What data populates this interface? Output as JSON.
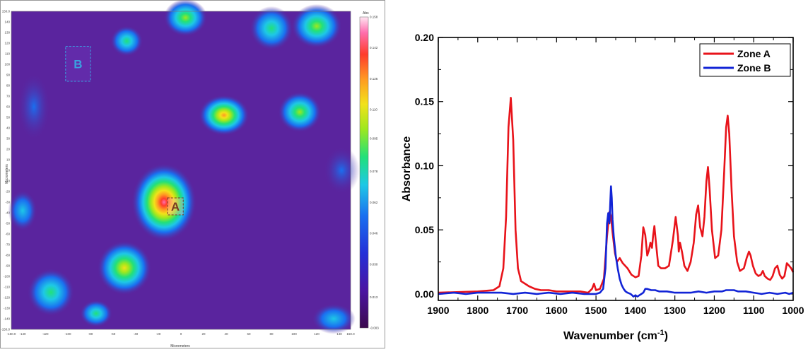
{
  "chart_data": [
    {
      "type": "heatmap",
      "xlabel": "Micrometers",
      "ylabel": "Micrometers",
      "xlim": [
        -150,
        150
      ],
      "ylim": [
        -150,
        150
      ],
      "x_ticks": [
        "-150.0",
        "-140",
        "-120",
        "-100",
        "-80",
        "-60",
        "-40",
        "-20",
        "0",
        "20",
        "40",
        "60",
        "80",
        "100",
        "120",
        "140",
        "150.0"
      ],
      "y_ticks": [
        "150.0",
        "140",
        "130",
        "120",
        "110",
        "100",
        "90",
        "80",
        "70",
        "60",
        "50",
        "40",
        "30",
        "20",
        "10",
        "0",
        "-10",
        "-20",
        "-30",
        "-40",
        "-50",
        "-60",
        "-70",
        "-80",
        "-90",
        "-100",
        "-110",
        "-120",
        "-130",
        "-140",
        "-150.0"
      ],
      "colorbar": {
        "label": "Abs",
        "min": -0.003,
        "max": 0.158,
        "ticks": [
          "0.158",
          "0.142",
          "0.126",
          "0.110",
          "0.095",
          "0.078",
          "0.062",
          "0.046",
          "0.030",
          "0.013",
          "-0.003"
        ]
      },
      "zones": [
        {
          "label": "A",
          "x": [
            -12,
            2
          ],
          "y": [
            -42,
            -26
          ],
          "color": "#7a3a22"
        },
        {
          "label": "B",
          "x": [
            -102,
            -80
          ],
          "y": [
            84,
            117
          ],
          "color": "#3aa0e0"
        }
      ],
      "hotspots": [
        {
          "x": -15,
          "y": -30,
          "rx": 18,
          "ry": 23,
          "level": 0.15
        },
        {
          "x": 38,
          "y": 52,
          "rx": 14,
          "ry": 12,
          "level": 0.13
        },
        {
          "x": 105,
          "y": 55,
          "rx": 12,
          "ry": 12,
          "level": 0.11
        },
        {
          "x": -50,
          "y": -92,
          "rx": 15,
          "ry": 16,
          "level": 0.12
        },
        {
          "x": 4,
          "y": 144,
          "rx": 12,
          "ry": 11,
          "level": 0.11
        },
        {
          "x": -48,
          "y": 122,
          "rx": 9,
          "ry": 9,
          "level": 0.1
        },
        {
          "x": 80,
          "y": 134,
          "rx": 12,
          "ry": 13,
          "level": 0.1
        },
        {
          "x": 120,
          "y": 136,
          "rx": 14,
          "ry": 13,
          "level": 0.11
        },
        {
          "x": -130,
          "y": 60,
          "rx": 9,
          "ry": 20,
          "level": 0.07
        },
        {
          "x": -140,
          "y": -38,
          "rx": 8,
          "ry": 12,
          "level": 0.08
        },
        {
          "x": -115,
          "y": -115,
          "rx": 13,
          "ry": 14,
          "level": 0.09
        },
        {
          "x": -75,
          "y": -135,
          "rx": 9,
          "ry": 8,
          "level": 0.09
        },
        {
          "x": 142,
          "y": 0,
          "rx": 10,
          "ry": 14,
          "level": 0.07
        },
        {
          "x": 135,
          "y": -140,
          "rx": 12,
          "ry": 9,
          "level": 0.08
        }
      ]
    },
    {
      "type": "line",
      "xlabel": "Wavenumber (cm",
      "xlabel_sup": "-1",
      "xlabel_close": ")",
      "ylabel": "Absorbance",
      "xlim": [
        1900,
        1000
      ],
      "ylim": [
        -0.005,
        0.2
      ],
      "x_ticks": [
        1900,
        1800,
        1700,
        1600,
        1500,
        1400,
        1300,
        1200,
        1100,
        1000
      ],
      "y_ticks": [
        "0.00",
        "0.05",
        "0.10",
        "0.15",
        "0.20"
      ],
      "legend_position": "top-right",
      "series": [
        {
          "name": "Zone A",
          "color": "#e8131a",
          "x": [
            1900,
            1800,
            1760,
            1745,
            1735,
            1728,
            1722,
            1716,
            1710,
            1704,
            1698,
            1690,
            1680,
            1670,
            1655,
            1640,
            1620,
            1600,
            1580,
            1560,
            1540,
            1520,
            1510,
            1505,
            1500,
            1490,
            1480,
            1472,
            1466,
            1462,
            1458,
            1452,
            1447,
            1440,
            1432,
            1420,
            1410,
            1400,
            1392,
            1385,
            1380,
            1375,
            1370,
            1366,
            1362,
            1358,
            1355,
            1352,
            1348,
            1342,
            1335,
            1325,
            1315,
            1305,
            1298,
            1292,
            1290,
            1287,
            1282,
            1276,
            1268,
            1260,
            1252,
            1246,
            1241,
            1236,
            1230,
            1225,
            1220,
            1216,
            1212,
            1206,
            1198,
            1190,
            1182,
            1175,
            1170,
            1166,
            1162,
            1156,
            1150,
            1142,
            1135,
            1125,
            1118,
            1112,
            1108,
            1102,
            1095,
            1088,
            1082,
            1077,
            1072,
            1065,
            1058,
            1052,
            1046,
            1040,
            1034,
            1028,
            1022,
            1016,
            1010,
            1005,
            1000
          ],
          "y": [
            0.001,
            0.002,
            0.003,
            0.006,
            0.02,
            0.06,
            0.13,
            0.153,
            0.12,
            0.05,
            0.02,
            0.01,
            0.008,
            0.006,
            0.004,
            0.003,
            0.003,
            0.002,
            0.002,
            0.002,
            0.002,
            0.001,
            0.004,
            0.008,
            0.003,
            0.004,
            0.012,
            0.045,
            0.064,
            0.06,
            0.048,
            0.032,
            0.025,
            0.028,
            0.024,
            0.02,
            0.015,
            0.013,
            0.014,
            0.03,
            0.052,
            0.046,
            0.03,
            0.034,
            0.04,
            0.036,
            0.046,
            0.053,
            0.04,
            0.022,
            0.02,
            0.02,
            0.022,
            0.042,
            0.06,
            0.045,
            0.033,
            0.04,
            0.033,
            0.022,
            0.018,
            0.025,
            0.04,
            0.062,
            0.069,
            0.052,
            0.045,
            0.06,
            0.088,
            0.099,
            0.082,
            0.05,
            0.028,
            0.03,
            0.05,
            0.095,
            0.13,
            0.139,
            0.125,
            0.08,
            0.045,
            0.025,
            0.018,
            0.02,
            0.028,
            0.033,
            0.03,
            0.022,
            0.016,
            0.014,
            0.015,
            0.018,
            0.014,
            0.012,
            0.011,
            0.014,
            0.02,
            0.022,
            0.015,
            0.012,
            0.014,
            0.024,
            0.022,
            0.02,
            0.017
          ]
        },
        {
          "name": "Zone B",
          "color": "#1224d6",
          "x": [
            1900,
            1860,
            1830,
            1800,
            1770,
            1740,
            1710,
            1680,
            1650,
            1620,
            1590,
            1560,
            1530,
            1500,
            1490,
            1482,
            1476,
            1472,
            1469,
            1466,
            1464,
            1462,
            1460,
            1458,
            1455,
            1450,
            1445,
            1440,
            1435,
            1430,
            1425,
            1420,
            1412,
            1405,
            1400,
            1395,
            1390,
            1385,
            1380,
            1375,
            1370,
            1360,
            1350,
            1340,
            1320,
            1300,
            1280,
            1260,
            1240,
            1220,
            1200,
            1180,
            1170,
            1160,
            1150,
            1140,
            1120,
            1100,
            1080,
            1060,
            1040,
            1020,
            1010,
            1000
          ],
          "y": [
            0.0,
            0.001,
            0.0,
            0.001,
            0.001,
            0.001,
            0.0,
            0.001,
            0.0,
            0.001,
            0.0,
            0.001,
            0.0,
            0.0,
            0.001,
            0.004,
            0.02,
            0.055,
            0.063,
            0.055,
            0.07,
            0.084,
            0.075,
            0.058,
            0.045,
            0.03,
            0.02,
            0.012,
            0.007,
            0.004,
            0.002,
            0.001,
            0.0,
            -0.002,
            -0.001,
            -0.002,
            -0.001,
            0.0,
            0.001,
            0.004,
            0.004,
            0.003,
            0.003,
            0.002,
            0.002,
            0.001,
            0.001,
            0.001,
            0.002,
            0.001,
            0.002,
            0.002,
            0.003,
            0.003,
            0.003,
            0.002,
            0.002,
            0.001,
            0.0,
            0.001,
            0.0,
            0.001,
            0.0,
            0.001
          ]
        }
      ]
    }
  ]
}
